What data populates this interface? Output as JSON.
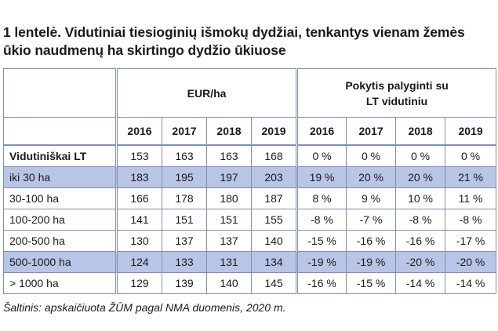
{
  "title": "1 lentelė. Vidutiniai tiesioginių išmokų dydžiai, tenkantys vienam žemės ūkio naudmenų ha skirtingo dydžio ūkiuose",
  "table": {
    "group_headers": {
      "eur": "EUR/ha",
      "change_line1": "Pokytis palyginti su",
      "change_line2": "LT vidutiniu"
    },
    "years_eur": [
      "2016",
      "2017",
      "2018",
      "2019"
    ],
    "years_change": [
      "2016",
      "2017",
      "2018",
      "2019"
    ],
    "rows": [
      {
        "label": "Vidutiniškai LT",
        "eur": [
          "153",
          "163",
          "163",
          "168"
        ],
        "change": [
          "0 %",
          "0 %",
          "0 %",
          "0 %"
        ]
      },
      {
        "label": "iki 30 ha",
        "eur": [
          "183",
          "195",
          "197",
          "203"
        ],
        "change": [
          "19 %",
          "20 %",
          "20 %",
          "21 %"
        ]
      },
      {
        "label": "30-100 ha",
        "eur": [
          "166",
          "178",
          "180",
          "187"
        ],
        "change": [
          "8 %",
          "9 %",
          "10 %",
          "11 %"
        ]
      },
      {
        "label": "100-200 ha",
        "eur": [
          "141",
          "151",
          "151",
          "155"
        ],
        "change": [
          "-8 %",
          "-7 %",
          "-8 %",
          "-8 %"
        ]
      },
      {
        "label": "200-500 ha",
        "eur": [
          "130",
          "137",
          "137",
          "140"
        ],
        "change": [
          "-15 %",
          "-16 %",
          "-16 %",
          "-17 %"
        ]
      },
      {
        "label": "500-1000 ha",
        "eur": [
          "124",
          "133",
          "131",
          "134"
        ],
        "change": [
          "-19 %",
          "-19 %",
          "-20 %",
          "-20 %"
        ]
      },
      {
        "label": "> 1000 ha",
        "eur": [
          "129",
          "139",
          "140",
          "145"
        ],
        "change": [
          "-16 %",
          "-15 %",
          "-14 %",
          "-14 %"
        ]
      }
    ],
    "highlight_color": "#b8c5e6",
    "border_color": "#7f8fb3"
  },
  "source": "Šaltinis: apskaičiuota ŽŪM pagal NMA duomenis, 2020 m."
}
